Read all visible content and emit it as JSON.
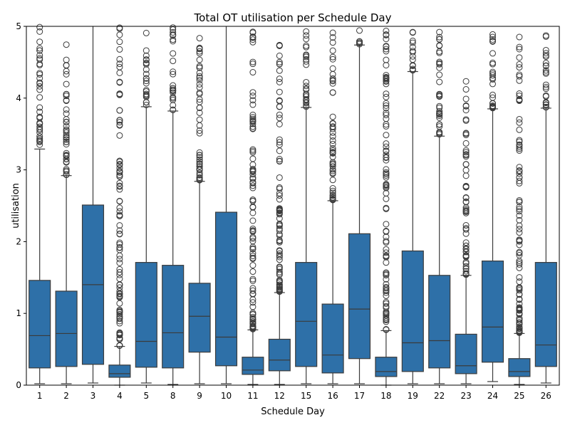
{
  "chart_data": {
    "type": "box",
    "title": "Total OT utilisation per Schedule Day",
    "xlabel": "Schedule Day",
    "ylabel": "utilisation",
    "ylim": [
      0,
      5
    ],
    "yticks": [
      0,
      1,
      2,
      3,
      4,
      5
    ],
    "grid": false,
    "legend": "none",
    "box_color": "#2e70a8",
    "line_color": "#3b3b3b",
    "categories": [
      "1",
      "2",
      "3",
      "4",
      "5",
      "8",
      "9",
      "10",
      "11",
      "12",
      "15",
      "16",
      "17",
      "18",
      "19",
      "22",
      "23",
      "24",
      "25",
      "26"
    ],
    "boxes": [
      {
        "label": "1",
        "whislo": 0.02,
        "q1": 0.24,
        "med": 0.69,
        "q3": 1.46,
        "whishi": 3.29,
        "outlier_range": [
          3.3,
          5.0
        ]
      },
      {
        "label": "2",
        "whislo": 0.02,
        "q1": 0.26,
        "med": 0.72,
        "q3": 1.31,
        "whishi": 2.92,
        "outlier_range": [
          2.93,
          4.92
        ]
      },
      {
        "label": "3",
        "whislo": 0.03,
        "q1": 0.29,
        "med": 1.4,
        "q3": 2.51,
        "whishi": 5.0,
        "outlier_range": null
      },
      {
        "label": "4",
        "whislo": 0.0,
        "q1": 0.11,
        "med": 0.16,
        "q3": 0.28,
        "whishi": 0.54,
        "outlier_range": [
          0.55,
          5.0
        ]
      },
      {
        "label": "5",
        "whislo": 0.03,
        "q1": 0.25,
        "med": 0.61,
        "q3": 1.71,
        "whishi": 3.88,
        "outlier_range": [
          3.9,
          4.95
        ]
      },
      {
        "label": "8",
        "whislo": 0.01,
        "q1": 0.24,
        "med": 0.73,
        "q3": 1.67,
        "whishi": 3.82,
        "outlier_range": [
          3.83,
          5.0
        ]
      },
      {
        "label": "9",
        "whislo": 0.02,
        "q1": 0.46,
        "med": 0.96,
        "q3": 1.42,
        "whishi": 2.84,
        "outlier_range": [
          2.85,
          5.0
        ]
      },
      {
        "label": "10",
        "whislo": 0.02,
        "q1": 0.27,
        "med": 0.67,
        "q3": 2.41,
        "whishi": 5.0,
        "outlier_range": null
      },
      {
        "label": "11",
        "whislo": 0.01,
        "q1": 0.15,
        "med": 0.21,
        "q3": 0.39,
        "whishi": 0.77,
        "outlier_range": [
          0.78,
          4.97
        ]
      },
      {
        "label": "12",
        "whislo": 0.01,
        "q1": 0.2,
        "med": 0.35,
        "q3": 0.64,
        "whishi": 1.29,
        "outlier_range": [
          1.3,
          4.95
        ]
      },
      {
        "label": "15",
        "whislo": 0.02,
        "q1": 0.26,
        "med": 0.89,
        "q3": 1.71,
        "whishi": 3.87,
        "outlier_range": [
          3.88,
          5.0
        ]
      },
      {
        "label": "16",
        "whislo": 0.02,
        "q1": 0.17,
        "med": 0.42,
        "q3": 1.13,
        "whishi": 2.57,
        "outlier_range": [
          2.58,
          5.0
        ]
      },
      {
        "label": "17",
        "whislo": 0.02,
        "q1": 0.37,
        "med": 1.06,
        "q3": 2.11,
        "whishi": 4.74,
        "outlier_range": [
          4.75,
          5.0
        ]
      },
      {
        "label": "18",
        "whislo": 0.0,
        "q1": 0.12,
        "med": 0.19,
        "q3": 0.39,
        "whishi": 0.76,
        "outlier_range": [
          0.77,
          4.95
        ]
      },
      {
        "label": "19",
        "whislo": 0.02,
        "q1": 0.19,
        "med": 0.59,
        "q3": 1.87,
        "whishi": 4.37,
        "outlier_range": [
          4.38,
          5.0
        ]
      },
      {
        "label": "22",
        "whislo": 0.02,
        "q1": 0.24,
        "med": 0.62,
        "q3": 1.53,
        "whishi": 3.47,
        "outlier_range": [
          3.48,
          5.0
        ]
      },
      {
        "label": "23",
        "whislo": 0.02,
        "q1": 0.16,
        "med": 0.27,
        "q3": 0.71,
        "whishi": 1.53,
        "outlier_range": [
          1.54,
          4.37
        ]
      },
      {
        "label": "24",
        "whislo": 0.05,
        "q1": 0.32,
        "med": 0.81,
        "q3": 1.73,
        "whishi": 3.85,
        "outlier_range": [
          3.86,
          5.0
        ]
      },
      {
        "label": "25",
        "whislo": 0.01,
        "q1": 0.12,
        "med": 0.19,
        "q3": 0.37,
        "whishi": 0.72,
        "outlier_range": [
          0.73,
          5.0
        ]
      },
      {
        "label": "26",
        "whislo": 0.03,
        "q1": 0.26,
        "med": 0.56,
        "q3": 1.71,
        "whishi": 3.86,
        "outlier_range": [
          3.87,
          5.0
        ]
      }
    ]
  }
}
